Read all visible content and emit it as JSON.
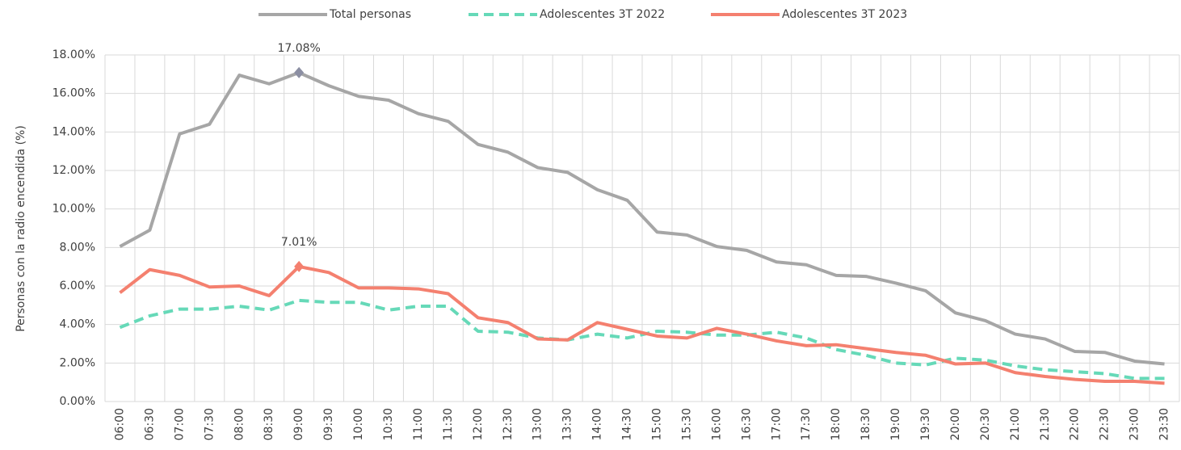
{
  "chart_data": {
    "type": "line",
    "y_label": "Personas con la radio encendida (%)",
    "categories": [
      "06:00",
      "06:30",
      "07:00",
      "07:30",
      "08:00",
      "08:30",
      "09:00",
      "09:30",
      "10:00",
      "10:30",
      "11:00",
      "11:30",
      "12:00",
      "12:30",
      "13:00",
      "13:30",
      "14:00",
      "14:30",
      "15:00",
      "15:30",
      "16:00",
      "16:30",
      "17:00",
      "17:30",
      "18:00",
      "18:30",
      "19:00",
      "19:30",
      "20:00",
      "20:30",
      "21:00",
      "21:30",
      "22:00",
      "22:30",
      "23:00",
      "23:30"
    ],
    "series": [
      {
        "name": "Total personas",
        "color": "#a6a6a6",
        "style": "solid",
        "values": [
          8.05,
          8.9,
          13.9,
          14.4,
          16.95,
          16.5,
          17.08,
          16.4,
          15.85,
          15.65,
          14.95,
          14.55,
          13.35,
          12.95,
          12.15,
          11.9,
          11.0,
          10.45,
          8.8,
          8.65,
          8.05,
          7.85,
          7.25,
          7.1,
          6.55,
          6.5,
          6.15,
          5.75,
          4.6,
          4.2,
          3.5,
          3.25,
          2.6,
          2.55,
          2.1,
          1.95
        ],
        "value_labels": [
          null,
          null,
          null,
          null,
          null,
          null,
          "17.08%",
          null,
          null,
          null,
          null,
          null,
          null,
          null,
          null,
          null,
          null,
          null,
          null,
          null,
          null,
          null,
          null,
          null,
          null,
          null,
          null,
          null,
          null,
          null,
          null,
          null,
          null,
          null,
          null,
          null
        ]
      },
      {
        "name": "Adolescentes 3T 2022",
        "color": "#66d9b8",
        "style": "dashed",
        "values": [
          3.85,
          4.45,
          4.8,
          4.8,
          4.95,
          4.75,
          5.25,
          5.15,
          5.15,
          4.75,
          4.95,
          4.95,
          3.65,
          3.6,
          3.3,
          3.2,
          3.5,
          3.3,
          3.65,
          3.6,
          3.45,
          3.45,
          3.6,
          3.3,
          2.7,
          2.4,
          2.0,
          1.9,
          2.25,
          2.15,
          1.85,
          1.65,
          1.55,
          1.45,
          1.2,
          1.2
        ]
      },
      {
        "name": "Adolescentes 3T 2023",
        "color": "#f4806f",
        "style": "solid",
        "values": [
          5.65,
          6.85,
          6.55,
          5.95,
          6.0,
          5.5,
          7.01,
          6.7,
          5.9,
          5.9,
          5.85,
          5.6,
          4.35,
          4.1,
          3.25,
          3.2,
          4.1,
          3.75,
          3.4,
          3.3,
          3.8,
          3.5,
          3.15,
          2.9,
          2.95,
          2.75,
          2.55,
          2.4,
          1.95,
          2.0,
          1.5,
          1.3,
          1.15,
          1.05,
          1.05,
          0.95
        ],
        "value_labels": [
          null,
          null,
          null,
          null,
          null,
          null,
          "7.01%",
          null,
          null,
          null,
          null,
          null,
          null,
          null,
          null,
          null,
          null,
          null,
          null,
          null,
          null,
          null,
          null,
          null,
          null,
          null,
          null,
          null,
          null,
          null,
          null,
          null,
          null,
          null,
          null,
          null
        ]
      }
    ],
    "ylim": [
      0,
      18
    ],
    "yticks": [
      {
        "value": 0,
        "label": "0.00%"
      },
      {
        "value": 2,
        "label": "2.00%"
      },
      {
        "value": 4,
        "label": "4.00%"
      },
      {
        "value": 6,
        "label": "6.00%"
      },
      {
        "value": 8,
        "label": "8.00%"
      },
      {
        "value": 10,
        "label": "10.00%"
      },
      {
        "value": 12,
        "label": "12.00%"
      },
      {
        "value": 14,
        "label": "14.00%"
      },
      {
        "value": 16,
        "label": "16.00%"
      },
      {
        "value": 18,
        "label": "18.00%"
      }
    ],
    "grid": true,
    "legend": "top"
  }
}
